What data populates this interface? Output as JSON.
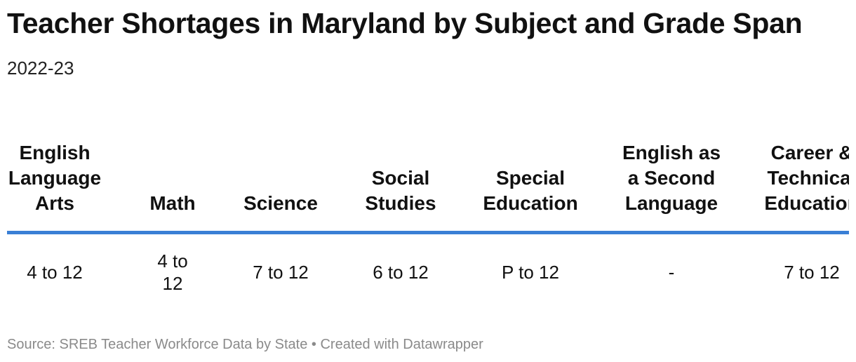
{
  "header": {
    "title": "Teacher Shortages in Maryland by Subject and Grade Span",
    "subtitle": "2022-23"
  },
  "table": {
    "columns": [
      "English Language Arts",
      "Math",
      "Science",
      "Social Studies",
      "Special Education",
      "English as a Second Language",
      "Career & Technical Education"
    ],
    "rows": [
      [
        "4 to 12",
        "4 to 12",
        "7 to 12",
        "6 to 12",
        "P to 12",
        "-",
        "7 to 12"
      ]
    ]
  },
  "footer": {
    "source": "Source: SREB Teacher Workforce Data by State • Created with Datawrapper"
  }
}
